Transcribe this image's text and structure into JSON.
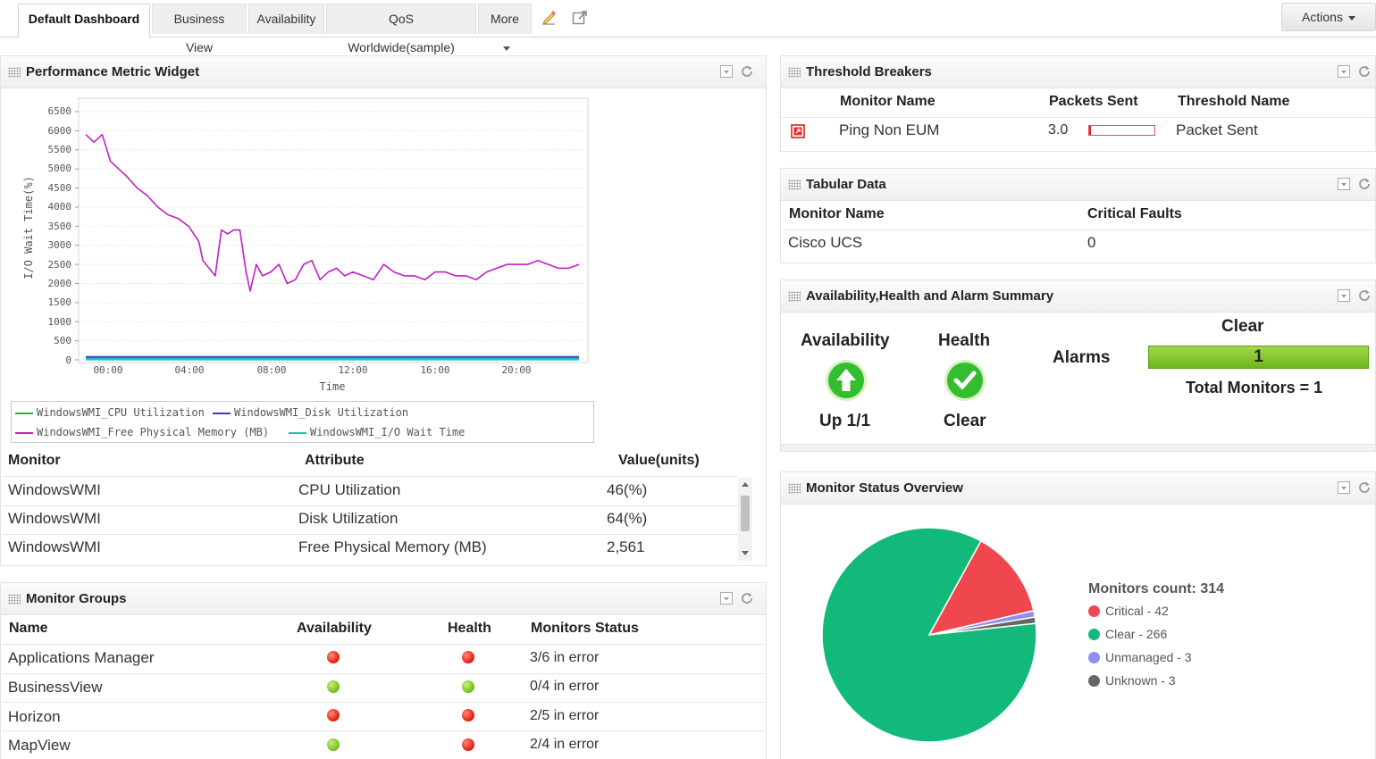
{
  "tabs": [
    {
      "label": "Default Dashboard",
      "active": true
    },
    {
      "label": "Business View"
    },
    {
      "label": "Availability"
    },
    {
      "label": "QoS Worldwide(sample)"
    },
    {
      "label": "More"
    }
  ],
  "actions_label": "Actions",
  "perf": {
    "title": "Performance Metric Widget",
    "table_headers": {
      "monitor": "Monitor",
      "attribute": "Attribute",
      "value": "Value(units)"
    },
    "rows": [
      {
        "monitor": "WindowsWMI",
        "attribute": "CPU Utilization",
        "value": "46(%)"
      },
      {
        "monitor": "WindowsWMI",
        "attribute": "Disk Utilization",
        "value": "64(%)"
      },
      {
        "monitor": "WindowsWMI",
        "attribute": "Free Physical Memory (MB)",
        "value": "2,561"
      }
    ]
  },
  "chart_data": {
    "type": "line",
    "xlabel": "Time",
    "ylabel": "I/O Wait Time(%)",
    "ylim": [
      0,
      6500
    ],
    "yticks": [
      "6500",
      "6000",
      "5500",
      "5000",
      "4500",
      "4000",
      "3500",
      "3000",
      "2500",
      "2000",
      "1500",
      "1000",
      "500",
      "0"
    ],
    "xticks": [
      "00:00",
      "04:00",
      "08:00",
      "12:00",
      "16:00",
      "20:00"
    ],
    "grid": true,
    "legend_position": "bottom",
    "series": [
      {
        "name": "WindowsWMI_CPU Utilization",
        "color": "#2db52d",
        "x": [
          0,
          24
        ],
        "values": [
          46,
          46
        ]
      },
      {
        "name": "WindowsWMI_Disk Utilization",
        "color": "#3b3bbd",
        "x": [
          0,
          24
        ],
        "values": [
          64,
          64
        ]
      },
      {
        "name": "WindowsWMI_Free Physical Memory (MB)",
        "color": "#c21fc2",
        "x": [
          0,
          0.4,
          0.8,
          1.2,
          1.6,
          2.0,
          2.5,
          3.0,
          3.5,
          4.0,
          4.5,
          5.0,
          5.5,
          5.7,
          6.0,
          6.3,
          6.6,
          6.9,
          7.2,
          7.5,
          7.8,
          8.0,
          8.3,
          8.6,
          9.0,
          9.4,
          9.8,
          10.2,
          10.6,
          11.0,
          11.4,
          11.8,
          12.2,
          12.6,
          13.0,
          13.5,
          14.0,
          14.5,
          15.0,
          15.5,
          16.0,
          16.5,
          17.0,
          17.5,
          18.0,
          18.5,
          19.0,
          19.5,
          20.0,
          20.5,
          21.0,
          21.5,
          22.0,
          22.5,
          23.0,
          23.5,
          24.0
        ],
        "values": [
          5900,
          5700,
          5900,
          5200,
          5000,
          4800,
          4500,
          4300,
          4000,
          3800,
          3700,
          3500,
          3100,
          2600,
          2400,
          2200,
          3400,
          3300,
          3400,
          3400,
          2300,
          1800,
          2500,
          2200,
          2300,
          2500,
          2000,
          2100,
          2500,
          2600,
          2100,
          2300,
          2400,
          2200,
          2300,
          2200,
          2100,
          2500,
          2300,
          2200,
          2200,
          2100,
          2300,
          2300,
          2200,
          2200,
          2100,
          2300,
          2400,
          2500,
          2500,
          2500,
          2600,
          2500,
          2400,
          2400,
          2500
        ]
      },
      {
        "name": "WindowsWMI_I/O Wait Time",
        "color": "#1fc2c2",
        "x": [
          0,
          24
        ],
        "values": [
          20,
          20
        ]
      }
    ]
  },
  "groups": {
    "title": "Monitor Groups",
    "headers": {
      "name": "Name",
      "availability": "Availability",
      "health": "Health",
      "status": "Monitors Status"
    },
    "rows": [
      {
        "name": "Applications Manager",
        "availability": "red",
        "health": "red",
        "status": "3/6 in error"
      },
      {
        "name": "BusinessView",
        "availability": "green",
        "health": "green",
        "status": "0/4 in error"
      },
      {
        "name": "Horizon",
        "availability": "red",
        "health": "red",
        "status": "2/5 in error"
      },
      {
        "name": "MapView",
        "availability": "green",
        "health": "red",
        "status": "2/4 in error"
      }
    ]
  },
  "threshold": {
    "title": "Threshold Breakers",
    "headers": {
      "monitor": "Monitor Name",
      "packets": "Packets Sent",
      "threshold": "Threshold Name"
    },
    "row": {
      "monitor": "Ping Non EUM",
      "packets": "3.0",
      "fill_fraction": 0.02,
      "threshold": "Packet Sent"
    }
  },
  "tabular": {
    "title": "Tabular Data",
    "headers": {
      "monitor": "Monitor Name",
      "faults": "Critical Faults"
    },
    "row": {
      "monitor": "Cisco UCS",
      "faults": "0"
    }
  },
  "summary": {
    "title": "Availability,Health and Alarm Summary",
    "availability_label": "Availability",
    "availability_value": "Up 1/1",
    "health_label": "Health",
    "health_value": "Clear",
    "alarms_label": "Alarms",
    "clear_label": "Clear",
    "clear_count": "1",
    "total_monitors": "Total Monitors = 1"
  },
  "overview": {
    "title": "Monitor Status Overview",
    "count_label": "Monitors count: 314",
    "slices": [
      {
        "label": "Critical - 42",
        "value": 42,
        "color": "#f0474f"
      },
      {
        "label": "Clear - 266",
        "value": 266,
        "color": "#13b97a"
      },
      {
        "label": "Unmanaged - 3",
        "value": 3,
        "color": "#8c8ff0"
      },
      {
        "label": "Unknown - 3",
        "value": 3,
        "color": "#666666"
      }
    ]
  }
}
